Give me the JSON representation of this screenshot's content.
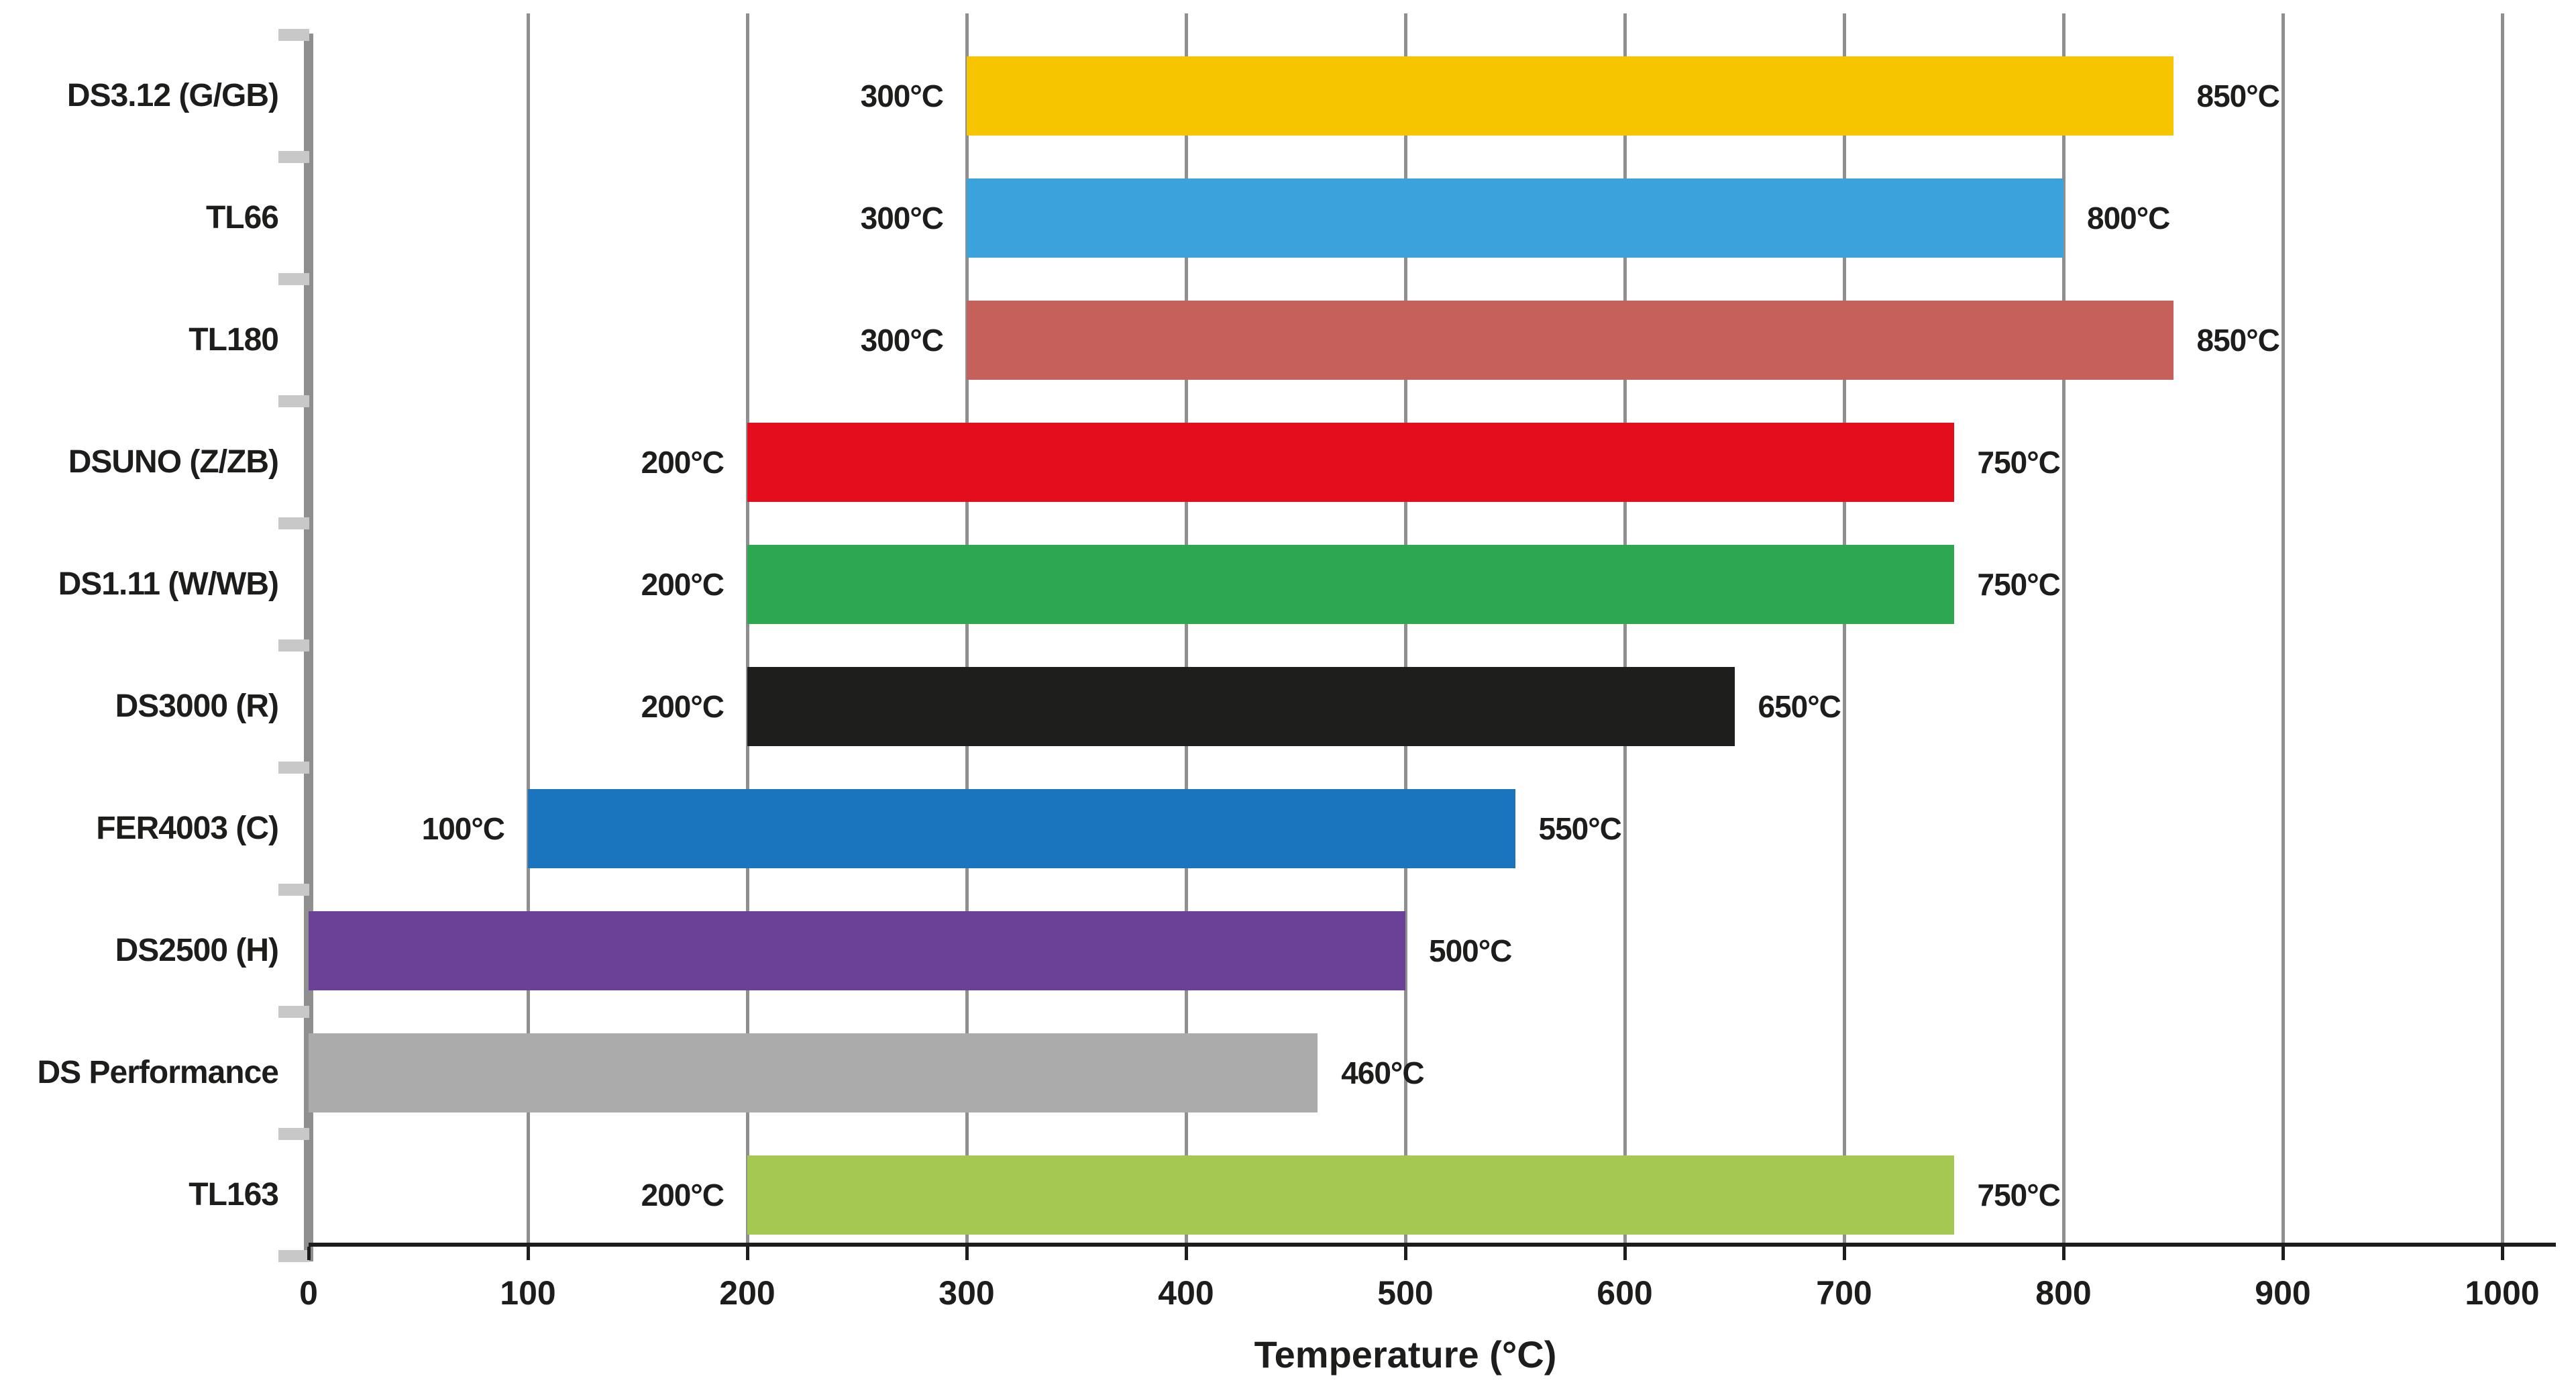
{
  "chart_data": {
    "type": "bar",
    "orientation": "horizontal",
    "variant": "range",
    "title": "",
    "xlabel": "Temperature (°C)",
    "ylabel": "",
    "xlim": [
      0,
      1000
    ],
    "grid": true,
    "legend": false,
    "x_ticks": [
      "0",
      "100",
      "200",
      "300",
      "400",
      "500",
      "600",
      "700",
      "800",
      "900",
      "1000"
    ],
    "series": [
      {
        "label": "DS3.12 (G/GB)",
        "min": 300,
        "max": 850,
        "min_label": "300°C",
        "max_label": "850°C",
        "color": "#F6C500"
      },
      {
        "label": "TL66",
        "min": 300,
        "max": 800,
        "min_label": "300°C",
        "max_label": "800°C",
        "color": "#3BA2DB"
      },
      {
        "label": "TL180",
        "min": 300,
        "max": 850,
        "min_label": "300°C",
        "max_label": "850°C",
        "color": "#C6605A"
      },
      {
        "label": "DSUNO (Z/ZB)",
        "min": 200,
        "max": 750,
        "min_label": "200°C",
        "max_label": "750°C",
        "color": "#E30D1D"
      },
      {
        "label": "DS1.11 (W/WB)",
        "min": 200,
        "max": 750,
        "min_label": "200°C",
        "max_label": "750°C",
        "color": "#2EA751"
      },
      {
        "label": "DS3000 (R)",
        "min": 200,
        "max": 650,
        "min_label": "200°C",
        "max_label": "650°C",
        "color": "#1E1E1C"
      },
      {
        "label": "FER4003 (C)",
        "min": 100,
        "max": 550,
        "min_label": "100°C",
        "max_label": "550°C",
        "color": "#1B74BE"
      },
      {
        "label": "DS2500 (H)",
        "min": 0,
        "max": 500,
        "min_label": "",
        "max_label": "500°C",
        "color": "#6A4196"
      },
      {
        "label": "DS Performance",
        "min": 0,
        "max": 460,
        "min_label": "",
        "max_label": "460°C",
        "color": "#ABABAB"
      },
      {
        "label": "TL163",
        "min": 200,
        "max": 750,
        "min_label": "200°C",
        "max_label": "750°C",
        "color": "#A4C852"
      }
    ]
  },
  "colors": {
    "background": "#FFFFFF",
    "gridline": "#8F8F8F",
    "y_axis": "#8F8F8F",
    "y_axis_tick": "#C8C8C8",
    "x_axis_line": "#1D1D1B",
    "x_axis_tick": "#1D1D1B",
    "text": "#1D1D1B"
  }
}
